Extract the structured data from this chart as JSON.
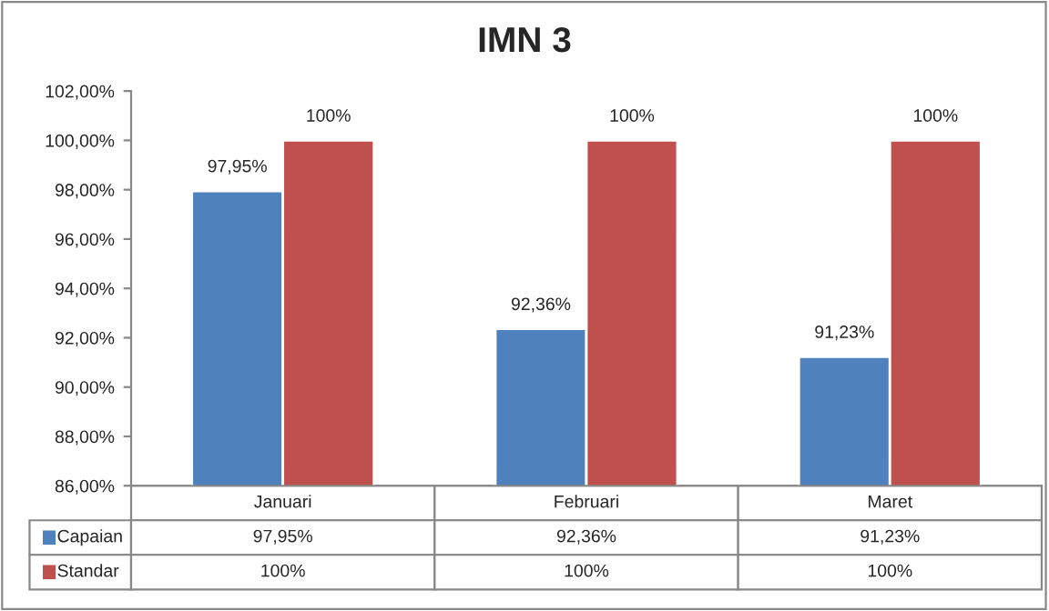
{
  "chart_data": {
    "type": "bar",
    "title": "IMN 3",
    "categories": [
      "Januari",
      "Februari",
      "Maret"
    ],
    "series": [
      {
        "name": "Capaian",
        "color": "#4f81bd",
        "values": [
          97.95,
          92.36,
          91.23
        ],
        "value_labels": [
          "97,95%",
          "92,36%",
          "91,23%"
        ]
      },
      {
        "name": "Standar",
        "color": "#c0504d",
        "values": [
          100,
          100,
          100
        ],
        "value_labels": [
          "100%",
          "100%",
          "100%"
        ]
      }
    ],
    "ylim": [
      86,
      102
    ],
    "yticks": [
      {
        "value": 86,
        "label": "86,00%"
      },
      {
        "value": 88,
        "label": "88,00%"
      },
      {
        "value": 90,
        "label": "90,00%"
      },
      {
        "value": 92,
        "label": "92,00%"
      },
      {
        "value": 94,
        "label": "94,00%"
      },
      {
        "value": 96,
        "label": "96,00%"
      },
      {
        "value": 98,
        "label": "98,00%"
      },
      {
        "value": 100,
        "label": "100,00%"
      },
      {
        "value": 102,
        "label": "102,00%"
      }
    ],
    "grid": false,
    "legend": "bottom"
  }
}
